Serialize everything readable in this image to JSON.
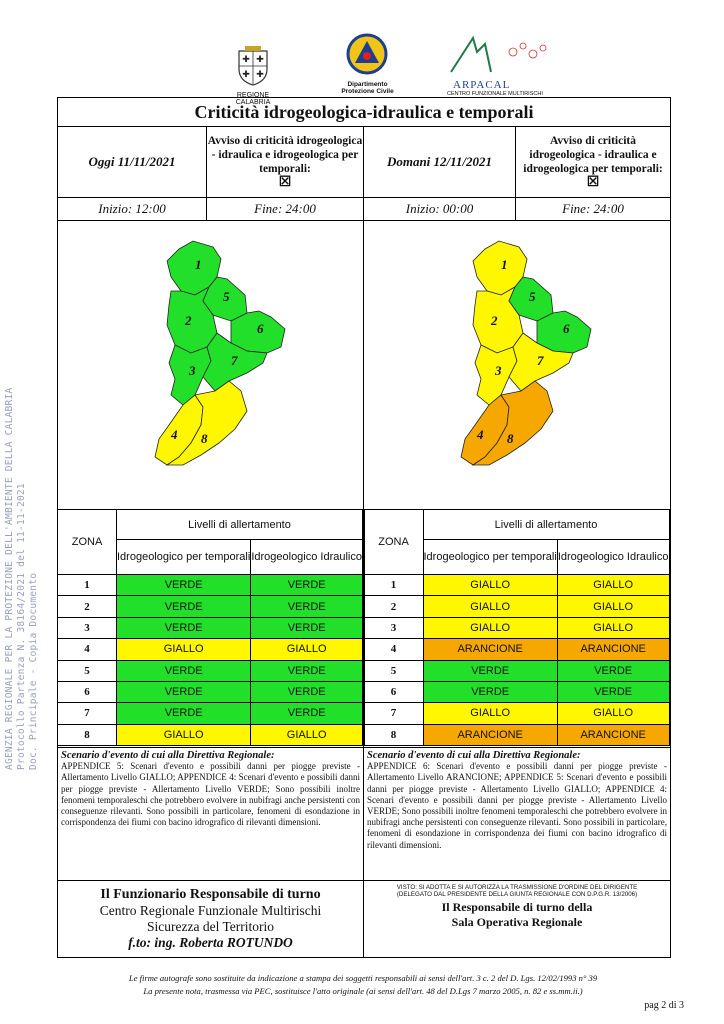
{
  "header": {
    "logo1_caption": "REGIONE CALABRIA",
    "logo2_caption_1": "Dipartimento",
    "logo2_caption_2": "Protezione Civile",
    "logo3_name": "ARPACAL",
    "logo3_caption": "CENTRO FUNZIONALE MULTIRISCHI"
  },
  "stamp": {
    "line1": "AGENZIA REGIONALE PER LA PROTEZIONE DELL'AMBIENTE DELLA CALABRIA",
    "line2": "Protocollo Partenza N. 38164/2021 del 11-11-2021",
    "line3": "Doc. Principale - Copia Documento"
  },
  "title": "Criticità idrogeologica-idraulica e temporali",
  "today": {
    "date_label": "Oggi 11/11/2021",
    "avviso": "Avviso di criticità idrogeologica - idraulica e idrogeologica per temporali:",
    "checkbox": "☒",
    "start": "Inizio: 12:00",
    "end": "Fine: 24:00"
  },
  "tomorrow": {
    "date_label": "Domani 12/11/2021",
    "avviso": "Avviso di criticità idrogeologica - idraulica e idrogeologica per temporali:",
    "checkbox": "☒",
    "start": "Inizio: 00:00",
    "end": "Fine: 24:00"
  },
  "table_headers": {
    "zona": "ZONA",
    "levels": "Livelli di allertamento",
    "col1": "Idrogeologico per temporali",
    "col2": "Idrogeologico Idraulico"
  },
  "colors": {
    "VERDE": "#22e02a",
    "GIALLO": "#fff700",
    "ARANCIONE": "#f6a700"
  },
  "today_rows": [
    {
      "zona": "1",
      "a": "VERDE",
      "b": "VERDE"
    },
    {
      "zona": "2",
      "a": "VERDE",
      "b": "VERDE"
    },
    {
      "zona": "3",
      "a": "VERDE",
      "b": "VERDE"
    },
    {
      "zona": "4",
      "a": "GIALLO",
      "b": "GIALLO"
    },
    {
      "zona": "5",
      "a": "VERDE",
      "b": "VERDE"
    },
    {
      "zona": "6",
      "a": "VERDE",
      "b": "VERDE"
    },
    {
      "zona": "7",
      "a": "VERDE",
      "b": "VERDE"
    },
    {
      "zona": "8",
      "a": "GIALLO",
      "b": "GIALLO"
    }
  ],
  "tomorrow_rows": [
    {
      "zona": "1",
      "a": "GIALLO",
      "b": "GIALLO"
    },
    {
      "zona": "2",
      "a": "GIALLO",
      "b": "GIALLO"
    },
    {
      "zona": "3",
      "a": "GIALLO",
      "b": "GIALLO"
    },
    {
      "zona": "4",
      "a": "ARANCIONE",
      "b": "ARANCIONE"
    },
    {
      "zona": "5",
      "a": "VERDE",
      "b": "VERDE"
    },
    {
      "zona": "6",
      "a": "VERDE",
      "b": "VERDE"
    },
    {
      "zona": "7",
      "a": "GIALLO",
      "b": "GIALLO"
    },
    {
      "zona": "8",
      "a": "ARANCIONE",
      "b": "ARANCIONE"
    }
  ],
  "map_today": {
    "1": "VERDE",
    "2": "VERDE",
    "3": "VERDE",
    "4": "GIALLO",
    "5": "VERDE",
    "6": "VERDE",
    "7": "VERDE",
    "8": "GIALLO"
  },
  "map_tomorrow": {
    "1": "GIALLO",
    "2": "GIALLO",
    "3": "GIALLO",
    "4": "ARANCIONE",
    "5": "VERDE",
    "6": "VERDE",
    "7": "GIALLO",
    "8": "ARANCIONE"
  },
  "scenario_today": {
    "heading": "Scenario d'evento di cui alla Direttiva Regionale:",
    "text": "APPENDICE 5: Scenari d'evento e possibili danni per piogge previste - Allertamento Livello GIALLO; APPENDICE 4: Scenari d'evento e possibili danni per piogge previste - Allertamento Livello VERDE; Sono possibili inoltre fenomeni temporaleschi che potrebbero evolvere in nubifragi anche persistenti con conseguenze rilevanti. Sono possibili in particolare, fenomeni di esondazione in corrispondenza dei fiumi con bacino idrografico di rilevanti dimensioni."
  },
  "scenario_tomorrow": {
    "heading": "Scenario d'evento di cui alla Direttiva Regionale:",
    "text": "APPENDICE 6: Scenari d'evento e possibili danni per piogge previste - Allertamento Livello ARANCIONE; APPENDICE 5: Scenari d'evento e possibili danni per piogge previste - Allertamento Livello GIALLO; APPENDICE 4: Scenari d'evento e possibili danni per piogge previste - Allertamento Livello VERDE; Sono possibili inoltre fenomeni temporaleschi che potrebbero evolvere in nubifragi anche persistenti con conseguenze rilevanti. Sono possibili in particolare, fenomeni di esondazione in corrispondenza dei fiumi con bacino idrografico di rilevanti dimensioni."
  },
  "footer_left": {
    "line1": "Il Funzionario Responsabile di turno",
    "line2": "Centro Regionale Funzionale Multirischi",
    "line3": "Sicurezza del Territorio",
    "line4": "f.to: ing. Roberta ROTUNDO"
  },
  "footer_right": {
    "small1": "VISTO: SI ADOTTA E SI AUTORIZZA LA TRASMISSIONE D'ORDINE DEL DIRIGENTE",
    "small2": "(DELEGATO DAL PRESIDENTE DELLA GIUNTA REGIONALE CON D.P.G.R. 13/2006)",
    "line1": "Il Responsabile di turno della",
    "line2": "Sala Operativa Regionale"
  },
  "notes": {
    "line1": "Le firme autografe sono sostituite da indicazione a stampa dei soggetti responsabili ai sensi dell'art. 3 c. 2 del D. Lgs. 12/02/1993 n° 39",
    "line2": "La presente nota, trasmessa via PEC, sostituisce l'atto originale (ai sensi dell'art. 48 del D.Lgs 7 marzo 2005, n. 82 e ss.mm.ii.)"
  },
  "page": "pag 2 di 3"
}
